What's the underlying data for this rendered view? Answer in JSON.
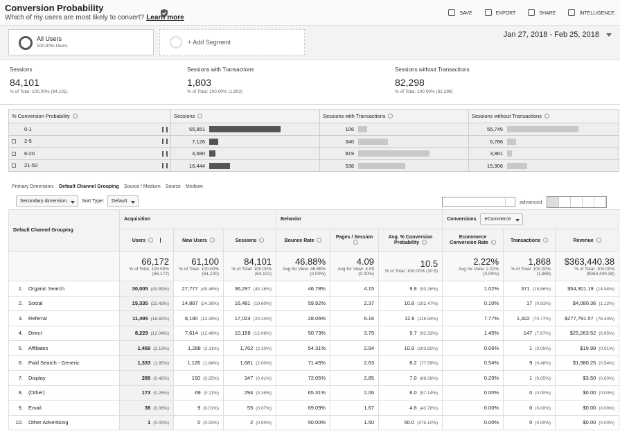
{
  "header": {
    "title": "Conversion Probability",
    "subtitle": "Which of my users are most likely to convert?",
    "learn_more": "Learn more",
    "actions": [
      "SAVE",
      "EXPORT",
      "SHARE",
      "INTELLIGENCE"
    ]
  },
  "segments": {
    "items": [
      {
        "name": "All Users",
        "detail": "100.00% Users"
      }
    ],
    "add": "+ Add Segment"
  },
  "date_range": "Jan 27, 2018 - Feb 25, 2018",
  "scorecards": [
    {
      "label": "Sessions",
      "value": "84,101",
      "detail": "% of Total: 100.00% (84,101)"
    },
    {
      "label": "Sessions with Transactions",
      "value": "1,803",
      "detail": "% of Total: 100.00% (1,803)"
    },
    {
      "label": "Sessions without Transactions",
      "value": "82,298",
      "detail": "% of Total: 100.00% (82,298)"
    }
  ],
  "probability_table": {
    "columns": [
      {
        "name": "% Conversion Probability"
      },
      {
        "name": "Sessions",
        "bar_color": "#555555"
      },
      {
        "name": "Sessions with Transactions",
        "bar_color": "#c8c8c8"
      },
      {
        "name": "Sessions without Transactions",
        "bar_color": "#c8c8c8"
      }
    ],
    "rows": [
      {
        "label": "0-1",
        "expandable": false,
        "cells": [
          {
            "value": 55851,
            "label": "55,851"
          },
          {
            "value": 106,
            "label": "106"
          },
          {
            "value": 55745,
            "label": "55,745"
          }
        ]
      },
      {
        "label": "2-5",
        "expandable": true,
        "cells": [
          {
            "value": 7126,
            "label": "7,126"
          },
          {
            "value": 340,
            "label": "340"
          },
          {
            "value": 6786,
            "label": "6,786"
          }
        ]
      },
      {
        "label": "6-20",
        "expandable": true,
        "cells": [
          {
            "value": 4680,
            "label": "4,680"
          },
          {
            "value": 819,
            "label": "819"
          },
          {
            "value": 3861,
            "label": "3,861"
          }
        ]
      },
      {
        "label": "21-50",
        "expandable": true,
        "cells": [
          {
            "value": 16444,
            "label": "16,444"
          },
          {
            "value": 538,
            "label": "538"
          },
          {
            "value": 15906,
            "label": "15,906"
          }
        ]
      }
    ]
  },
  "dimension_bar": {
    "label": "Primary Dimension:",
    "options": [
      "Default Channel Grouping",
      "Source / Medium",
      "Source",
      "Medium"
    ],
    "selected": 0
  },
  "controls": {
    "secondary": "Secondary dimension",
    "sort_label": "Sort Type:",
    "sort": "Default",
    "advanced": "advanced"
  },
  "table": {
    "dimension": "Default Channel Grouping",
    "groups": [
      {
        "name": "Acquisition",
        "columns": [
          "Users",
          "New Users",
          "Sessions"
        ]
      },
      {
        "name": "Behavior",
        "columns": [
          "Bounce Rate",
          "Pages / Session",
          "Avg. % Conversion Probability"
        ]
      },
      {
        "name": "Conversions",
        "selector": "eCommerce",
        "columns": [
          "Ecommerce Conversion Rate",
          "Transactions",
          "Revenue"
        ]
      }
    ],
    "totals": [
      [
        "66,172",
        "% of Total: 100.00% (66,172)"
      ],
      [
        "61,100",
        "% of Total: 100.00% (61,100)"
      ],
      [
        "84,101",
        "% of Total: 100.00% (84,101)"
      ],
      [
        "46.88%",
        "Avg for View: 46.88% (0.00%)"
      ],
      [
        "4.09",
        "Avg for View: 4.09 (0.00%)"
      ],
      [
        "10.5",
        "% of Total: 100.00% (10.5)"
      ],
      [
        "2.22%",
        "Avg for View: 2.22% (0.00%)"
      ],
      [
        "1,868",
        "% of Total: 100.00% (1,868)"
      ],
      [
        "$363,440.38",
        "% of Total: 100.00% ($363,440.38)"
      ]
    ],
    "rows": [
      {
        "num": "1.",
        "name": "Organic Search",
        "cells": [
          [
            "30,005",
            "(43.89%)"
          ],
          [
            "27,777",
            "(45.46%)"
          ],
          [
            "36,297",
            "(43.16%)"
          ],
          [
            "46.78%"
          ],
          [
            "4.15"
          ],
          [
            "9.8",
            "(93.26%)"
          ],
          [
            "1.02%"
          ],
          [
            "371",
            "(19.86%)"
          ],
          [
            "$54,301.19",
            "(14.94%)"
          ]
        ]
      },
      {
        "num": "2.",
        "name": "Social",
        "cells": [
          [
            "15,335",
            "(22.43%)"
          ],
          [
            "14,887",
            "(24.36%)"
          ],
          [
            "16,481",
            "(19.60%)"
          ],
          [
            "59.92%"
          ],
          [
            "2.37"
          ],
          [
            "10.8",
            "(102.47%)"
          ],
          [
            "0.10%"
          ],
          [
            "17",
            "(0.91%)"
          ],
          [
            "$4,080.36",
            "(1.12%)"
          ]
        ]
      },
      {
        "num": "3.",
        "name": "Referral",
        "cells": [
          [
            "11,495",
            "(16.82%)"
          ],
          [
            "8,180",
            "(13.39%)"
          ],
          [
            "17,024",
            "(20.24%)"
          ],
          [
            "28.06%"
          ],
          [
            "6.16"
          ],
          [
            "12.6",
            "(119.94%)"
          ],
          [
            "7.77%"
          ],
          [
            "1,322",
            "(70.77%)"
          ],
          [
            "$277,791.57",
            "(76.43%)"
          ]
        ]
      },
      {
        "num": "4.",
        "name": "Direct",
        "cells": [
          [
            "8,229",
            "(12.04%)"
          ],
          [
            "7,614",
            "(12.46%)"
          ],
          [
            "10,158",
            "(12.08%)"
          ],
          [
            "50.73%"
          ],
          [
            "3.79"
          ],
          [
            "9.7",
            "(92.33%)"
          ],
          [
            "1.45%"
          ],
          [
            "147",
            "(7.87%)"
          ],
          [
            "$25,263.52",
            "(6.95%)"
          ]
        ]
      },
      {
        "num": "5.",
        "name": "Affiliates",
        "cells": [
          [
            "1,459",
            "(2.13%)"
          ],
          [
            "1,288",
            "(2.11%)"
          ],
          [
            "1,762",
            "(2.10%)"
          ],
          [
            "54.31%"
          ],
          [
            "2.94"
          ],
          [
            "10.9",
            "(103.82%)"
          ],
          [
            "0.06%"
          ],
          [
            "1",
            "(0.05%)"
          ],
          [
            "$19.99",
            "(0.01%)"
          ]
        ]
      },
      {
        "num": "6.",
        "name": "Paid Search - Generic",
        "cells": [
          [
            "1,333",
            "(1.95%)"
          ],
          [
            "1,126",
            "(1.84%)"
          ],
          [
            "1,681",
            "(2.00%)"
          ],
          [
            "71.45%"
          ],
          [
            "2.63"
          ],
          [
            "8.2",
            "(77.59%)"
          ],
          [
            "0.54%"
          ],
          [
            "9",
            "(0.48%)"
          ],
          [
            "$1,980.25",
            "(0.54%)"
          ]
        ]
      },
      {
        "num": "7.",
        "name": "Display",
        "cells": [
          [
            "289",
            "(0.42%)"
          ],
          [
            "150",
            "(0.25%)"
          ],
          [
            "347",
            "(0.41%)"
          ],
          [
            "72.05%"
          ],
          [
            "2.85"
          ],
          [
            "7.0",
            "(66.06%)"
          ],
          [
            "0.29%"
          ],
          [
            "1",
            "(0.05%)"
          ],
          [
            "$3.50",
            "(0.00%)"
          ]
        ]
      },
      {
        "num": "8.",
        "name": "(Other)",
        "cells": [
          [
            "173",
            "(0.25%)"
          ],
          [
            "69",
            "(0.11%)"
          ],
          [
            "294",
            "(0.35%)"
          ],
          [
            "65.31%"
          ],
          [
            "2.06"
          ],
          [
            "6.0",
            "(57.14%)"
          ],
          [
            "0.00%"
          ],
          [
            "0",
            "(0.00%)"
          ],
          [
            "$0.00",
            "(0.00%)"
          ]
        ]
      },
      {
        "num": "9.",
        "name": "Email",
        "cells": [
          [
            "38",
            "(0.06%)"
          ],
          [
            "9",
            "(0.01%)"
          ],
          [
            "55",
            "(0.07%)"
          ],
          [
            "69.09%"
          ],
          [
            "1.67"
          ],
          [
            "4.6",
            "(43.78%)"
          ],
          [
            "0.00%"
          ],
          [
            "0",
            "(0.00%)"
          ],
          [
            "$0.00",
            "(0.00%)"
          ]
        ]
      },
      {
        "num": "10.",
        "name": "Other Advertising",
        "cells": [
          [
            "1",
            "(0.00%)"
          ],
          [
            "0",
            "(0.00%)"
          ],
          [
            "2",
            "(0.00%)"
          ],
          [
            "50.00%"
          ],
          [
            "1.50"
          ],
          [
            "50.0",
            "(475.10%)"
          ],
          [
            "0.00%"
          ],
          [
            "0",
            "(0.00%)"
          ],
          [
            "$0.00",
            "(0.00%)"
          ]
        ]
      }
    ]
  }
}
